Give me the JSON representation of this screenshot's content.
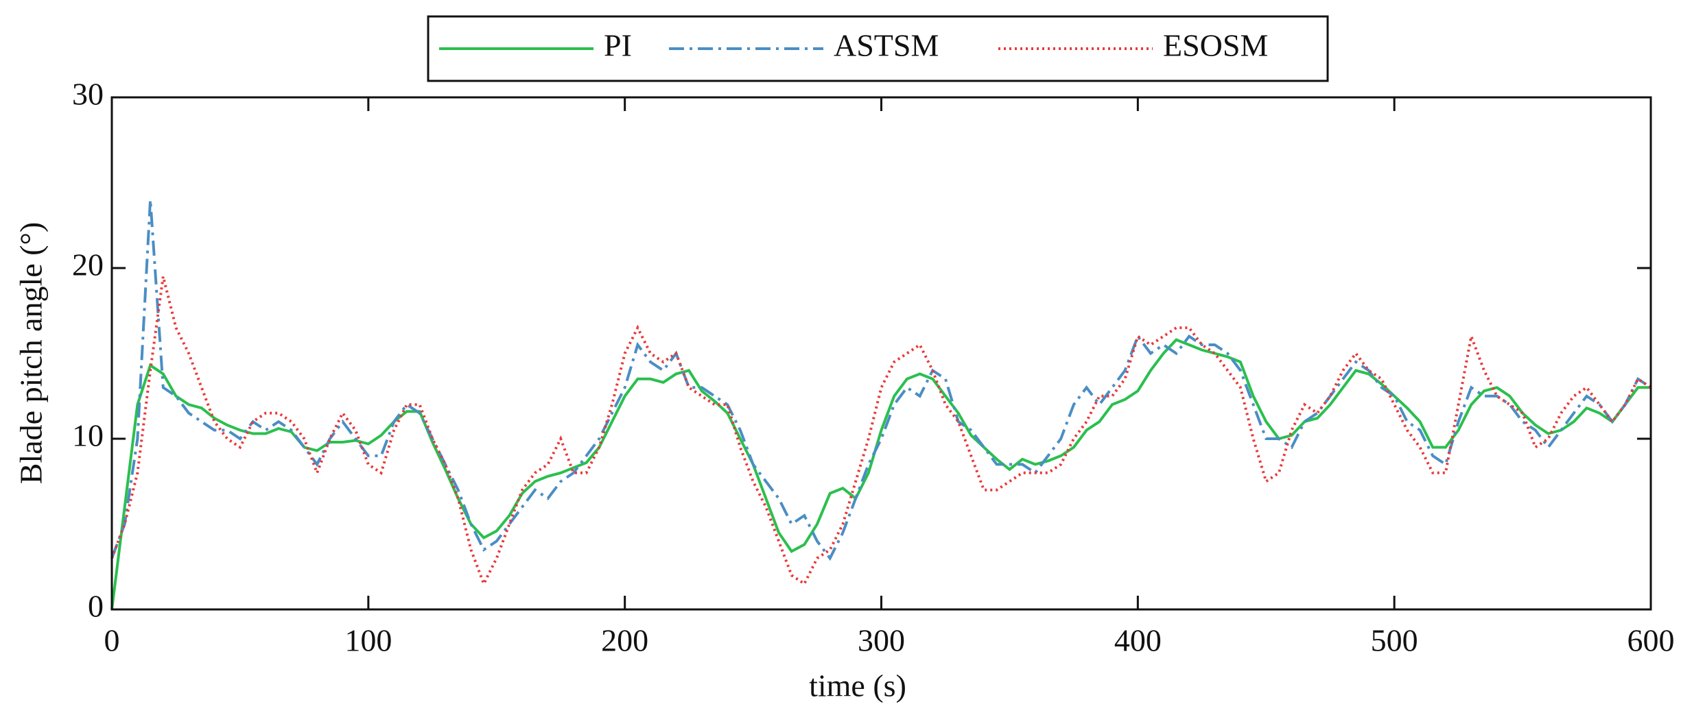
{
  "chart_data": {
    "type": "line",
    "xlabel": "time (s)",
    "ylabel": "Blade pitch angle (°)",
    "xlim": [
      0,
      600
    ],
    "xticks": [
      0,
      100,
      200,
      300,
      400,
      500,
      600
    ],
    "ylim": [
      0,
      30
    ],
    "yticks": [
      0,
      10,
      20,
      30
    ],
    "grid": false,
    "legend": "top",
    "x": [
      0,
      5,
      10,
      15,
      20,
      25,
      30,
      35,
      40,
      45,
      50,
      55,
      60,
      65,
      70,
      75,
      80,
      85,
      90,
      95,
      100,
      105,
      110,
      115,
      120,
      125,
      130,
      135,
      140,
      145,
      150,
      155,
      160,
      165,
      170,
      175,
      180,
      185,
      190,
      195,
      200,
      205,
      210,
      215,
      220,
      225,
      230,
      235,
      240,
      245,
      250,
      255,
      260,
      265,
      270,
      275,
      280,
      285,
      290,
      295,
      300,
      305,
      310,
      315,
      320,
      325,
      330,
      335,
      340,
      345,
      350,
      355,
      360,
      365,
      370,
      375,
      380,
      385,
      390,
      395,
      400,
      405,
      410,
      415,
      420,
      425,
      430,
      435,
      440,
      445,
      450,
      455,
      460,
      465,
      470,
      475,
      480,
      485,
      490,
      495,
      500,
      505,
      510,
      515,
      520,
      525,
      530,
      535,
      540,
      545,
      550,
      555,
      560,
      565,
      570,
      575,
      580,
      585,
      590,
      595,
      600
    ],
    "series": [
      {
        "name": "PI",
        "color": "#2bbf4e",
        "dash": "solid",
        "values": [
          0,
          6,
          12,
          14.3,
          13.8,
          12.5,
          12,
          11.8,
          11.2,
          10.8,
          10.5,
          10.3,
          10.3,
          10.6,
          10.4,
          9.5,
          9.3,
          9.8,
          9.8,
          9.9,
          9.7,
          10.2,
          11,
          11.6,
          11.6,
          9.8,
          8.2,
          6.5,
          5,
          4.2,
          4.6,
          5.5,
          6.8,
          7.5,
          7.8,
          8,
          8.3,
          8.6,
          9.5,
          11,
          12.5,
          13.5,
          13.5,
          13.3,
          13.8,
          14,
          12.8,
          12.2,
          11.5,
          10,
          8.5,
          6.5,
          4.5,
          3.4,
          3.8,
          5,
          6.8,
          7.1,
          6.5,
          8,
          10.5,
          12.5,
          13.5,
          13.8,
          13.5,
          12.5,
          11.5,
          10.2,
          9.5,
          8.8,
          8.2,
          8.8,
          8.5,
          8.7,
          9,
          9.5,
          10.5,
          11,
          12,
          12.3,
          12.8,
          14,
          15,
          15.8,
          15.5,
          15.2,
          15,
          14.8,
          14.5,
          12.5,
          11,
          10,
          10.2,
          11,
          11.2,
          12,
          13,
          14,
          13.8,
          13.2,
          12.5,
          11.8,
          11,
          9.5,
          9.5,
          10.5,
          12,
          12.8,
          13,
          12.5,
          11.5,
          10.8,
          10.3,
          10.5,
          11,
          11.8,
          11.5,
          11,
          12,
          13,
          13
        ]
      },
      {
        "name": "ASTSM",
        "color": "#4a8ec4",
        "dash": "dashdot",
        "values": [
          3,
          5,
          10,
          24,
          13,
          12.5,
          11.5,
          11,
          10.5,
          10.5,
          10,
          11,
          10.5,
          11,
          10.5,
          9.5,
          8.5,
          10,
          11,
          10,
          9,
          9,
          11,
          12,
          11.5,
          10,
          8.5,
          7,
          5,
          3.5,
          4,
          5,
          6,
          7,
          6.5,
          7.5,
          8,
          9,
          10,
          11.5,
          13,
          15.5,
          14.5,
          14,
          15,
          13,
          13,
          12.5,
          12,
          10.5,
          8.5,
          7.5,
          6.5,
          5,
          5.5,
          4,
          3,
          4.5,
          6.5,
          8.5,
          10,
          12,
          13,
          12.5,
          14,
          13.5,
          11,
          10.5,
          9.5,
          8.5,
          8.5,
          8.5,
          8,
          9,
          10,
          12,
          13,
          12,
          13,
          14,
          16,
          15,
          15.5,
          15,
          16,
          15.5,
          15.5,
          15,
          14,
          12,
          10,
          10,
          9.5,
          11,
          11.5,
          12.5,
          13.5,
          14.5,
          14,
          13,
          12.5,
          11,
          10.5,
          9,
          8.5,
          11,
          13,
          12.5,
          12.5,
          12,
          11,
          10.5,
          9.5,
          10.5,
          11.5,
          12.5,
          12,
          11,
          12,
          13.5,
          13
        ]
      },
      {
        "name": "ESOSM",
        "color": "#e83a3a",
        "dash": "dotted",
        "values": [
          3,
          5,
          8,
          14,
          19.5,
          16.5,
          15,
          13,
          11,
          10,
          9.5,
          11,
          11.5,
          11.5,
          11,
          10,
          8,
          10,
          11.5,
          10.5,
          8.5,
          8,
          10.5,
          12,
          12,
          10,
          8.5,
          6.5,
          3.5,
          1.5,
          3,
          5,
          7,
          8,
          8.5,
          10,
          8,
          8,
          9.5,
          12,
          15,
          16.5,
          15,
          14.5,
          15,
          13,
          12.5,
          12,
          12,
          9.5,
          7.5,
          6,
          4,
          2,
          1.5,
          3,
          3.5,
          5,
          7.5,
          10,
          13,
          14.5,
          15,
          15.5,
          14,
          12,
          11,
          9,
          7,
          7,
          7.5,
          8,
          8,
          8,
          8.5,
          10,
          11,
          12.5,
          12.5,
          13.5,
          16,
          15.5,
          16,
          16.5,
          16.5,
          15.5,
          15,
          14,
          13,
          10,
          7.5,
          8,
          10.5,
          12,
          11.5,
          12.5,
          14,
          15,
          14,
          13.5,
          12,
          10.5,
          9.5,
          8,
          8,
          12,
          16,
          14,
          12.5,
          12,
          11.5,
          9.5,
          10,
          11.5,
          12.5,
          13,
          12,
          11,
          12,
          13.5,
          13
        ]
      }
    ]
  }
}
